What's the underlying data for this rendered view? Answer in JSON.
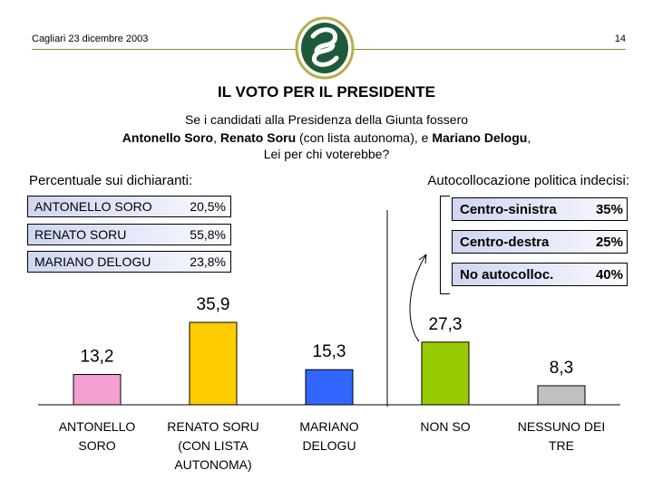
{
  "header": {
    "date": "Cagliari 23 dicembre 2003",
    "page_number": "14"
  },
  "title": "IL VOTO PER IL PRESIDENTE",
  "question": {
    "line1": "Se i candidati alla Presidenza della Giunta fossero",
    "line2_b1": "Antonello Soro",
    "line2_t1": ", ",
    "line2_b2": "Renato Soru",
    "line2_t2": " (con lista autonoma), e ",
    "line2_b3": "Mariano Delogu",
    "line2_t3": ",",
    "line3": "Lei per chi voterebbe?"
  },
  "left_panel": {
    "label": "Percentuale sui dichiaranti:",
    "items": [
      {
        "name": "ANTONELLO SORO",
        "value": "20,5%"
      },
      {
        "name": "RENATO SORU",
        "value": "55,8%"
      },
      {
        "name": "MARIANO DELOGU",
        "value": "23,8%"
      }
    ]
  },
  "right_panel": {
    "label": "Autocollocazione politica indecisi:",
    "items": [
      {
        "name": "Centro-sinistra",
        "value": "35%"
      },
      {
        "name": "Centro-destra",
        "value": "25%"
      },
      {
        "name": "No autocolloc.",
        "value": "40%"
      }
    ]
  },
  "colors": {
    "pink": "#f4a0d0",
    "yellow": "#ffcc00",
    "blue": "#3366ff",
    "green": "#99cc00",
    "gray": "#c0c0c0",
    "logo_green": "#1e5a3a",
    "logo_ring": "#b7b04a"
  },
  "chart_data": {
    "type": "bar",
    "categories": [
      [
        "ANTONELLO",
        "SORO"
      ],
      [
        "RENATO SORU",
        "(CON LISTA",
        "AUTONOMA)"
      ],
      [
        "MARIANO",
        "DELOGU"
      ],
      [
        "NON SO"
      ],
      [
        "NESSUNO DEI",
        "TRE"
      ]
    ],
    "values": [
      13.2,
      35.9,
      15.3,
      27.3,
      8.3
    ],
    "value_labels": [
      "13,2",
      "35,9",
      "15,3",
      "27,3",
      "8,3"
    ],
    "bar_colors": [
      "#f4a0d0",
      "#ffcc00",
      "#3366ff",
      "#99cc00",
      "#c0c0c0"
    ],
    "ylim": [
      0,
      40
    ],
    "grid": false,
    "legend": "none",
    "xlabel": "",
    "ylabel": ""
  }
}
